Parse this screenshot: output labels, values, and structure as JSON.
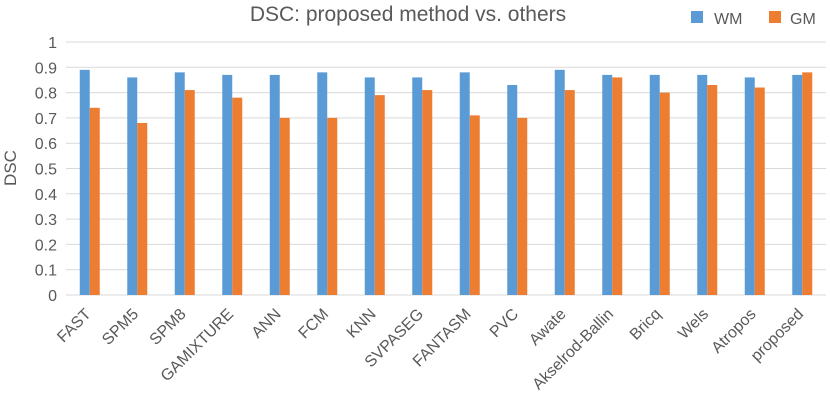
{
  "chart_data": {
    "type": "bar",
    "title": "DSC: proposed method vs. others",
    "xlabel": "",
    "ylabel": "DSC",
    "ylim": [
      0,
      1
    ],
    "yticks": [
      "0",
      "0.1",
      "0.2",
      "0.3",
      "0.4",
      "0.5",
      "0.6",
      "0.7",
      "0.8",
      "0.9",
      "1"
    ],
    "grid": true,
    "legend_position": "top-right",
    "categories": [
      "FAST",
      "SPM5",
      "SPM8",
      "GAMIXTURE",
      "ANN",
      "FCM",
      "KNN",
      "SVPASEG",
      "FANTASM",
      "PVC",
      "Awate",
      "Akselrod-Ballin",
      "Bricq",
      "Wels",
      "Atropos",
      "proposed"
    ],
    "series": [
      {
        "name": "WM",
        "color": "#5b9bd5",
        "values": [
          0.89,
          0.86,
          0.88,
          0.87,
          0.87,
          0.88,
          0.86,
          0.86,
          0.88,
          0.83,
          0.89,
          0.87,
          0.87,
          0.87,
          0.86,
          0.87
        ]
      },
      {
        "name": "GM",
        "color": "#ed7d31",
        "values": [
          0.74,
          0.68,
          0.81,
          0.78,
          0.7,
          0.7,
          0.79,
          0.81,
          0.71,
          0.7,
          0.81,
          0.86,
          0.8,
          0.83,
          0.82,
          0.88
        ]
      }
    ]
  }
}
